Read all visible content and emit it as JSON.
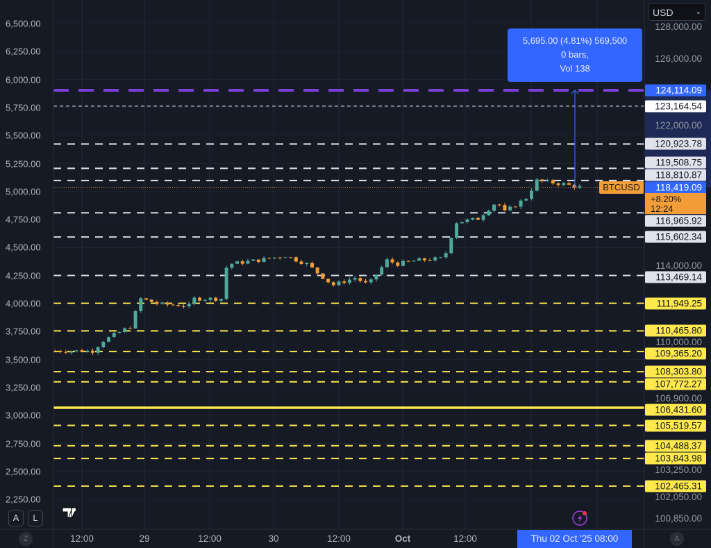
{
  "currency_select": {
    "value": "USD"
  },
  "symbol": "BTCUSD",
  "last_price": "118,419.09",
  "change_pct": "+8.20%",
  "countdown": "12:24",
  "measure_tooltip": {
    "line1": "5,695.00 (4.81%) 569,500",
    "line2": "0 bars,",
    "line3": "Vol 138"
  },
  "crosshair_time": "Thu 02 Oct '25   08:00",
  "buttons": {
    "auto": "A",
    "log": "L",
    "zoom": "Z",
    "auto_scale": "A"
  },
  "colors": {
    "up": "#4fa89a",
    "down": "#f29d38",
    "measure": "#3366ff",
    "resistance": "#e0e3eb",
    "support": "#ffe94d",
    "target": "#7a3fd6",
    "price_line": "#f29d38"
  },
  "icons": {
    "logo": "tradingview-logo",
    "alert": "lightning-icon"
  },
  "chart_data": {
    "type": "candlestick",
    "symbol": "BTCUSD",
    "right_axis": {
      "scale": "log",
      "tick_labels": [
        "128,000.00",
        "126,000.00",
        "122,000.00",
        "114,000.00",
        "110,000.00",
        "106,900.00",
        "103,250.00",
        "102,050.00",
        "100,850.00"
      ]
    },
    "left_axis": {
      "tick_labels": [
        "6,500.00",
        "6,250.00",
        "6,000.00",
        "5,750.00",
        "5,500.00",
        "5,250.00",
        "5,000.00",
        "4,750.00",
        "4,500.00",
        "4,250.00",
        "4,000.00",
        "3,750.00",
        "3,500.00",
        "3,250.00",
        "3,000.00",
        "2,750.00",
        "2,500.00",
        "2,250.00"
      ]
    },
    "x_tick_labels": [
      "12:00",
      "29",
      "12:00",
      "30",
      "12:00",
      "Oct",
      "12:00"
    ],
    "approx_close_path": [
      {
        "t": "2025-09-28 07:00",
        "p": 109400
      },
      {
        "t": "2025-09-28 14:00",
        "p": 109400
      },
      {
        "t": "2025-09-28 16:00",
        "p": 109950
      },
      {
        "t": "2025-09-28 21:00",
        "p": 110690
      },
      {
        "t": "2025-09-28 23:00",
        "p": 112200
      },
      {
        "t": "2025-09-29 02:30",
        "p": 111900
      },
      {
        "t": "2025-09-29 08:00",
        "p": 111820
      },
      {
        "t": "2025-09-29 09:00",
        "p": 112200
      },
      {
        "t": "2025-09-29 14:00",
        "p": 112200
      },
      {
        "t": "2025-09-29 14:30",
        "p": 113710
      },
      {
        "t": "2025-09-29 15:30",
        "p": 114100
      },
      {
        "t": "2025-09-29 20:40",
        "p": 114300
      },
      {
        "t": "2025-09-30 02:00",
        "p": 114560
      },
      {
        "t": "2025-09-30 06:00",
        "p": 114100
      },
      {
        "t": "2025-09-30 10:00",
        "p": 113140
      },
      {
        "t": "2025-09-30 11:00",
        "p": 112950
      },
      {
        "t": "2025-09-30 15:00",
        "p": 113340
      },
      {
        "t": "2025-09-30 17:30",
        "p": 112950
      },
      {
        "t": "2025-09-30 21:00",
        "p": 114300
      },
      {
        "t": "2025-09-30 23:00",
        "p": 114100
      },
      {
        "t": "2025-10-01 02:30",
        "p": 114300
      },
      {
        "t": "2025-10-01 07:40",
        "p": 114410
      },
      {
        "t": "2025-10-01 09:00",
        "p": 115650
      },
      {
        "t": "2025-10-01 10:00",
        "p": 116430
      },
      {
        "t": "2025-10-01 14:00",
        "p": 116630
      },
      {
        "t": "2025-10-01 17:30",
        "p": 117610
      },
      {
        "t": "2025-10-01 19:00",
        "p": 117010
      },
      {
        "t": "2025-10-01 21:00",
        "p": 117410
      },
      {
        "t": "2025-10-01 23:00",
        "p": 117810
      },
      {
        "t": "2025-10-02 01:00",
        "p": 118800
      },
      {
        "t": "2025-10-02 03:00",
        "p": 118720
      },
      {
        "t": "2025-10-02 06:00",
        "p": 118600
      },
      {
        "t": "2025-10-02 09:00",
        "p": 118419.09
      }
    ],
    "levels": [
      {
        "label": "124,114.09",
        "price": 124114.09,
        "kind": "target"
      },
      {
        "label": "123,164.54",
        "price": 123164.54,
        "kind": "resistance-thin"
      },
      {
        "label": "120,923.78",
        "price": 120923.78,
        "kind": "resistance"
      },
      {
        "label": "119,508.75",
        "price": 119508.75,
        "kind": "resistance"
      },
      {
        "label": "118,810.87",
        "price": 118810.87,
        "kind": "resistance"
      },
      {
        "label": "116,965.92",
        "price": 116965.92,
        "kind": "resistance"
      },
      {
        "label": "115,602.34",
        "price": 115602.34,
        "kind": "resistance"
      },
      {
        "label": "113,469.14",
        "price": 113469.14,
        "kind": "resistance"
      },
      {
        "label": "111,949.25",
        "price": 111949.25,
        "kind": "support"
      },
      {
        "label": "110,465.80",
        "price": 110465.8,
        "kind": "support"
      },
      {
        "label": "109,365.20",
        "price": 109365.2,
        "kind": "support"
      },
      {
        "label": "108,303.80",
        "price": 108303.8,
        "kind": "support"
      },
      {
        "label": "107,772.27",
        "price": 107772.27,
        "kind": "support"
      },
      {
        "label": "106,431.60",
        "price": 106431.6,
        "kind": "support-solid"
      },
      {
        "label": "105,519.57",
        "price": 105519.57,
        "kind": "support"
      },
      {
        "label": "104,488.37",
        "price": 104488.37,
        "kind": "support"
      },
      {
        "label": "103,843.98",
        "price": 103843.98,
        "kind": "support"
      },
      {
        "label": "102,465.31",
        "price": 102465.31,
        "kind": "support"
      }
    ]
  }
}
